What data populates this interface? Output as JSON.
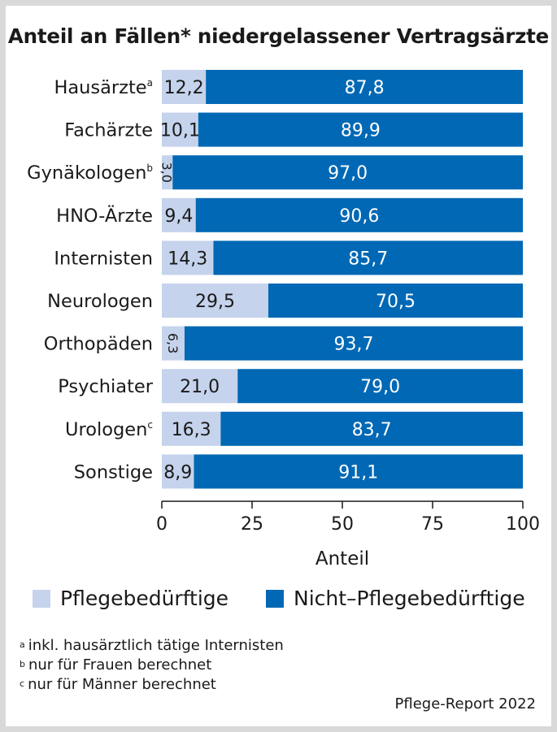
{
  "chart_data": {
    "type": "bar",
    "orientation": "horizontal",
    "stacked": true,
    "title": "Anteil an Fällen* niedergelassener Vertragsärzte",
    "categories": [
      {
        "label": "Hausärzte",
        "sup": "a"
      },
      {
        "label": "Fachärzte",
        "sup": ""
      },
      {
        "label": "Gynäkologen",
        "sup": "b"
      },
      {
        "label": "HNO-Ärzte",
        "sup": ""
      },
      {
        "label": "Internisten",
        "sup": ""
      },
      {
        "label": "Neurologen",
        "sup": ""
      },
      {
        "label": "Orthopäden",
        "sup": ""
      },
      {
        "label": "Psychiater",
        "sup": ""
      },
      {
        "label": "Urologen",
        "sup": "c"
      },
      {
        "label": "Sonstige",
        "sup": ""
      }
    ],
    "series": [
      {
        "name": "Pflegebedürftige",
        "color": "#c5d3ec",
        "values": [
          12.2,
          10.1,
          3.0,
          9.4,
          14.3,
          29.5,
          6.3,
          21.0,
          16.3,
          8.9
        ],
        "labels": [
          "12,2",
          "10,1",
          "3,0",
          "9,4",
          "14,3",
          "29,5",
          "6,3",
          "21,0",
          "16,3",
          "8,9"
        ]
      },
      {
        "name": "Nicht–Pflegebedürftige",
        "color": "#0068b4",
        "values": [
          87.8,
          89.9,
          97.0,
          90.6,
          85.7,
          70.5,
          93.7,
          79.0,
          83.7,
          91.1
        ],
        "labels": [
          "87,8",
          "89,9",
          "97,0",
          "90,6",
          "85,7",
          "70,5",
          "93,7",
          "79,0",
          "83,7",
          "91,1"
        ]
      }
    ],
    "xlabel": "Anteil",
    "xlim": [
      0,
      100
    ],
    "xticks": [
      0,
      25,
      50,
      75,
      100
    ],
    "xtick_labels": [
      "0",
      "25",
      "50",
      "75",
      "100"
    ],
    "legend_position": "bottom"
  },
  "footnotes": [
    {
      "marker": "a",
      "text": "inkl. hausärztlich tätige Internisten"
    },
    {
      "marker": "b",
      "text": "nur für Frauen berechnet"
    },
    {
      "marker": "c",
      "text": "nur für Männer berechnet"
    }
  ],
  "source": "Pflege-Report 2022"
}
